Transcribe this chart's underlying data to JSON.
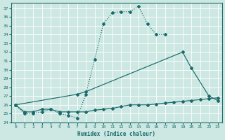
{
  "xlabel": "Humidex (Indice chaleur)",
  "bg_color": "#cde8e3",
  "grid_color": "#b8ddd7",
  "line_color": "#1a6b6b",
  "xlim": [
    -0.5,
    23.5
  ],
  "ylim": [
    24.0,
    37.6
  ],
  "xticks": [
    0,
    1,
    2,
    3,
    4,
    5,
    6,
    7,
    8,
    9,
    10,
    11,
    12,
    13,
    14,
    15,
    16,
    17,
    18,
    19,
    20,
    21,
    22,
    23
  ],
  "yticks": [
    24,
    25,
    26,
    27,
    28,
    29,
    30,
    31,
    32,
    33,
    34,
    35,
    36,
    37
  ],
  "line1_x": [
    0,
    1,
    2,
    3,
    4,
    5,
    6,
    7,
    8,
    9,
    10,
    11,
    12,
    13,
    14,
    15,
    16,
    17
  ],
  "line1_y": [
    26.0,
    25.0,
    25.0,
    25.2,
    25.5,
    25.0,
    24.8,
    24.5,
    27.2,
    31.2,
    35.2,
    36.5,
    36.6,
    36.6,
    37.2,
    35.2,
    34.0,
    34.0
  ],
  "line1_style": "dotted",
  "line2_x": [
    0,
    7,
    8,
    19,
    20,
    22,
    23
  ],
  "line2_y": [
    26.0,
    27.2,
    27.5,
    32.0,
    30.2,
    27.0,
    26.5
  ],
  "line2_style": "solid",
  "line3_x": [
    0,
    1,
    2,
    3,
    4,
    5,
    6,
    7,
    8,
    9,
    10,
    11,
    12,
    13,
    14,
    15,
    16,
    17,
    18,
    19,
    20,
    21,
    22,
    23
  ],
  "line3_y": [
    26.0,
    25.2,
    25.2,
    25.5,
    25.5,
    25.2,
    25.2,
    25.2,
    25.2,
    25.4,
    25.5,
    25.6,
    25.8,
    26.0,
    26.0,
    26.0,
    26.1,
    26.2,
    26.3,
    26.4,
    26.5,
    26.6,
    26.7,
    26.8
  ],
  "line3_style": "solid"
}
